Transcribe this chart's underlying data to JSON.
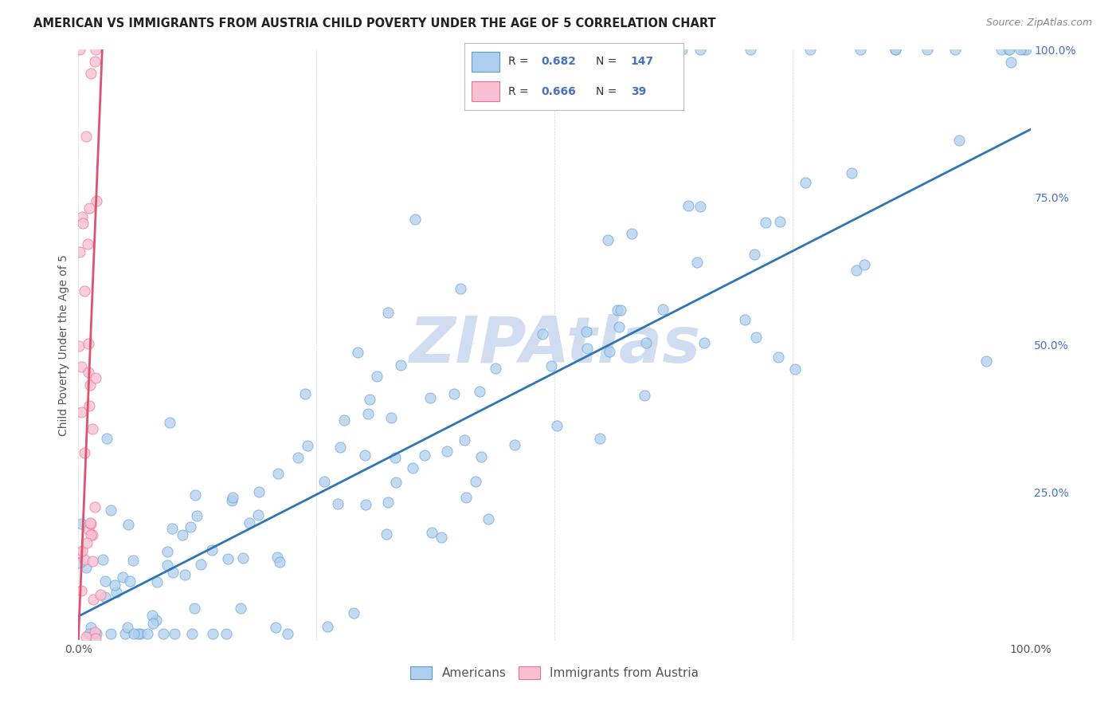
{
  "title": "AMERICAN VS IMMIGRANTS FROM AUSTRIA CHILD POVERTY UNDER THE AGE OF 5 CORRELATION CHART",
  "source": "Source: ZipAtlas.com",
  "ylabel": "Child Poverty Under the Age of 5",
  "xlim": [
    0,
    1.0
  ],
  "ylim": [
    0,
    1.0
  ],
  "xticks": [
    0.0,
    0.25,
    0.5,
    0.75,
    1.0
  ],
  "xticklabels": [
    "0.0%",
    "",
    "",
    "",
    "100.0%"
  ],
  "ytick_labels_right": [
    "100.0%",
    "75.0%",
    "50.0%",
    "25.0%"
  ],
  "ytick_positions_right": [
    1.0,
    0.75,
    0.5,
    0.25
  ],
  "legend_labels": [
    "Americans",
    "Immigrants from Austria"
  ],
  "color_americans_fill": "#AECFEF",
  "color_americans_edge": "#5B9BD5",
  "color_austria_fill": "#F9C0D4",
  "color_austria_edge": "#E8728A",
  "color_text_blue": "#4472C4",
  "color_line_americans": "#2E75B6",
  "color_line_austria": "#E05070",
  "background_color": "#FFFFFF",
  "watermark_color": "#D0DCF0",
  "title_fontsize": 10.5,
  "source_fontsize": 9,
  "axis_label_fontsize": 10,
  "scatter_size": 90,
  "line_width": 2.0,
  "americans_line_x0": 0.0,
  "americans_line_y0": 0.04,
  "americans_line_x1": 1.0,
  "americans_line_y1": 0.865,
  "austria_line_x0": 0.0,
  "austria_line_y0": 0.0,
  "austria_line_x1": 0.025,
  "austria_line_y1": 1.0
}
